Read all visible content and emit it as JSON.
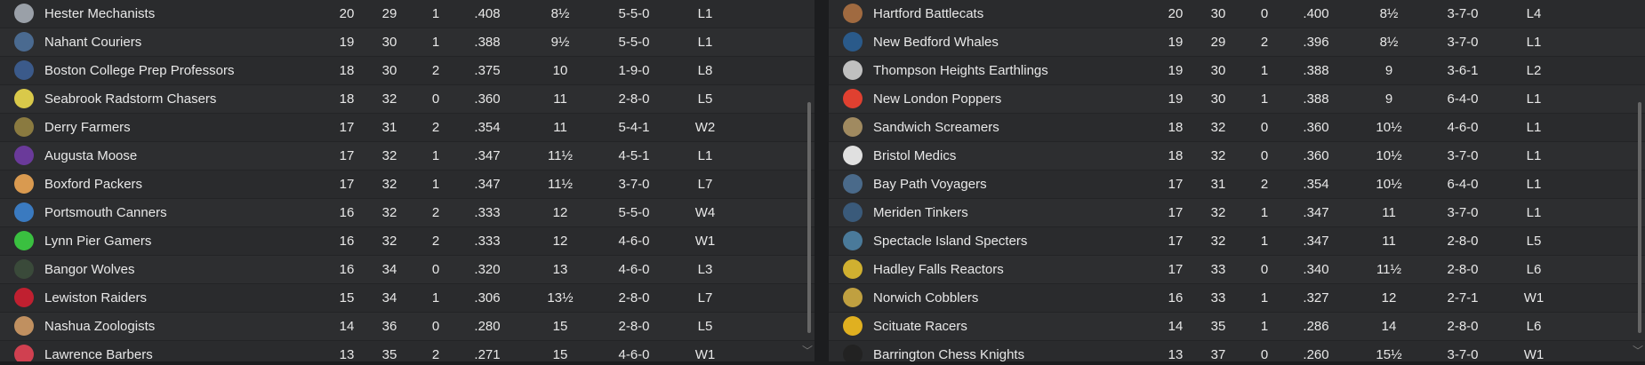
{
  "left": {
    "rows": [
      [
        "Hester Mechanists",
        "20",
        "29",
        "1",
        ".408",
        "8½",
        "5-5-0",
        "L1",
        "#9aa0a8"
      ],
      [
        "Nahant Couriers",
        "19",
        "30",
        "1",
        ".388",
        "9½",
        "5-5-0",
        "L1",
        "#4a6a90"
      ],
      [
        "Boston College Prep Professors",
        "18",
        "30",
        "2",
        ".375",
        "10",
        "1-9-0",
        "L8",
        "#3b5a8a"
      ],
      [
        "Seabrook Radstorm Chasers",
        "18",
        "32",
        "0",
        ".360",
        "11",
        "2-8-0",
        "L5",
        "#d9c94a"
      ],
      [
        "Derry Farmers",
        "17",
        "31",
        "2",
        ".354",
        "11",
        "5-4-1",
        "W2",
        "#8a7a40"
      ],
      [
        "Augusta Moose",
        "17",
        "32",
        "1",
        ".347",
        "11½",
        "4-5-1",
        "L1",
        "#6a3a9a"
      ],
      [
        "Boxford Packers",
        "17",
        "32",
        "1",
        ".347",
        "11½",
        "3-7-0",
        "L7",
        "#d99a50"
      ],
      [
        "Portsmouth Canners",
        "16",
        "32",
        "2",
        ".333",
        "12",
        "5-5-0",
        "W4",
        "#3a7ac0"
      ],
      [
        "Lynn Pier Gamers",
        "16",
        "32",
        "2",
        ".333",
        "12",
        "4-6-0",
        "W1",
        "#3ac040"
      ],
      [
        "Bangor Wolves",
        "16",
        "34",
        "0",
        ".320",
        "13",
        "4-6-0",
        "L3",
        "#3a4a3a"
      ],
      [
        "Lewiston Raiders",
        "15",
        "34",
        "1",
        ".306",
        "13½",
        "2-8-0",
        "L7",
        "#c02030"
      ],
      [
        "Nashua Zoologists",
        "14",
        "36",
        "0",
        ".280",
        "15",
        "2-8-0",
        "L5",
        "#c09060"
      ],
      [
        "Lawrence Barbers",
        "13",
        "35",
        "2",
        ".271",
        "15",
        "4-6-0",
        "W1",
        "#d04050"
      ]
    ]
  },
  "right": {
    "rows": [
      [
        "Hartford Battlecats",
        "20",
        "30",
        "0",
        ".400",
        "8½",
        "3-7-0",
        "L4",
        "#a06a40"
      ],
      [
        "New Bedford Whales",
        "19",
        "29",
        "2",
        ".396",
        "8½",
        "3-7-0",
        "L1",
        "#2a5a8a"
      ],
      [
        "Thompson Heights Earthlings",
        "19",
        "30",
        "1",
        ".388",
        "9",
        "3-6-1",
        "L2",
        "#c0c0c0"
      ],
      [
        "New London Poppers",
        "19",
        "30",
        "1",
        ".388",
        "9",
        "6-4-0",
        "L1",
        "#e04030"
      ],
      [
        "Sandwich Screamers",
        "18",
        "32",
        "0",
        ".360",
        "10½",
        "4-6-0",
        "L1",
        "#a08a60"
      ],
      [
        "Bristol Medics",
        "18",
        "32",
        "0",
        ".360",
        "10½",
        "3-7-0",
        "L1",
        "#e0e0e0"
      ],
      [
        "Bay Path Voyagers",
        "17",
        "31",
        "2",
        ".354",
        "10½",
        "6-4-0",
        "L1",
        "#4a6a8a"
      ],
      [
        "Meriden Tinkers",
        "17",
        "32",
        "1",
        ".347",
        "11",
        "3-7-0",
        "L1",
        "#3a5a7a"
      ],
      [
        "Spectacle Island Specters",
        "17",
        "32",
        "1",
        ".347",
        "11",
        "2-8-0",
        "L5",
        "#4a7a9a"
      ],
      [
        "Hadley Falls Reactors",
        "17",
        "33",
        "0",
        ".340",
        "11½",
        "2-8-0",
        "L6",
        "#d0b030"
      ],
      [
        "Norwich Cobblers",
        "16",
        "33",
        "1",
        ".327",
        "12",
        "2-7-1",
        "W1",
        "#c0a040"
      ],
      [
        "Scituate Racers",
        "14",
        "35",
        "1",
        ".286",
        "14",
        "2-8-0",
        "L6",
        "#e0b020"
      ],
      [
        "Barrington Chess Knights",
        "13",
        "37",
        "0",
        ".260",
        "15½",
        "3-7-0",
        "W1",
        "#222222"
      ]
    ]
  },
  "scroll_icon": "chevron-down-icon"
}
